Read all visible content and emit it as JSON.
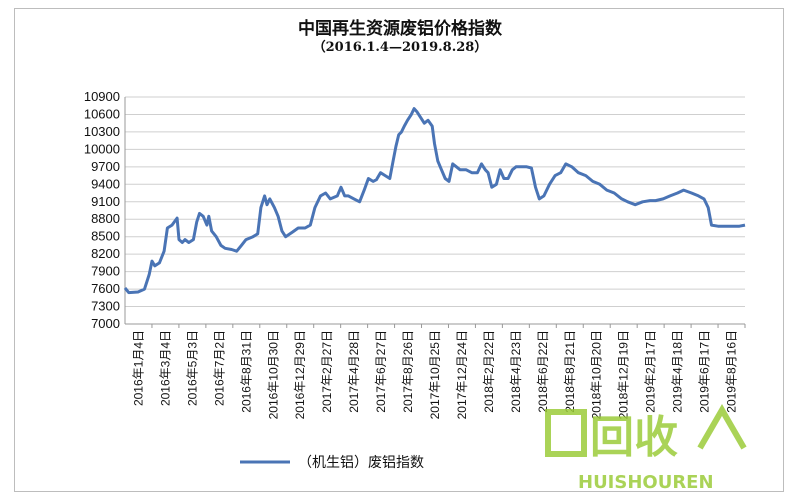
{
  "chart_data": {
    "type": "line",
    "title": "中国再生资源废铝价格指数",
    "subtitle": "（2016.1.4—2019.8.28）",
    "xlabel": "",
    "ylabel": "",
    "ylim": [
      7000,
      10900
    ],
    "yticks": [
      7000,
      7300,
      7600,
      7900,
      8200,
      8500,
      8800,
      9100,
      9400,
      9700,
      10000,
      10300,
      10600,
      10900
    ],
    "xtick_labels": [
      "2016年1月4日",
      "2016年3月4日",
      "2016年5月3日",
      "2016年7月2日",
      "2016年8月31日",
      "2016年10月30日",
      "2016年12月29日",
      "2017年2月27日",
      "2017年4月28日",
      "2017年6月27日",
      "2017年8月26日",
      "2017年10月25日",
      "2017年12月24日",
      "2018年2月22日",
      "2018年4月23日",
      "2018年6月22日",
      "2018年8月21日",
      "2018年10月20日",
      "2018年12月19日",
      "2019年2月17日",
      "2019年4月18日",
      "2019年6月17日",
      "2019年8月16日"
    ],
    "legend": {
      "position": "bottom"
    },
    "grid": true,
    "series": [
      {
        "name": "（机生铝）废铝指数",
        "color": "#4a74b5",
        "points": [
          [
            "2016-01-04",
            7620
          ],
          [
            "2016-01-12",
            7540
          ],
          [
            "2016-02-01",
            7550
          ],
          [
            "2016-02-15",
            7600
          ],
          [
            "2016-02-25",
            7850
          ],
          [
            "2016-03-02",
            8080
          ],
          [
            "2016-03-08",
            8000
          ],
          [
            "2016-03-18",
            8050
          ],
          [
            "2016-03-28",
            8250
          ],
          [
            "2016-04-04",
            8650
          ],
          [
            "2016-04-14",
            8700
          ],
          [
            "2016-04-25",
            8820
          ],
          [
            "2016-04-29",
            8450
          ],
          [
            "2016-05-06",
            8400
          ],
          [
            "2016-05-12",
            8450
          ],
          [
            "2016-05-20",
            8400
          ],
          [
            "2016-05-30",
            8450
          ],
          [
            "2016-06-06",
            8750
          ],
          [
            "2016-06-12",
            8900
          ],
          [
            "2016-06-20",
            8850
          ],
          [
            "2016-06-28",
            8700
          ],
          [
            "2016-07-02",
            8850
          ],
          [
            "2016-07-08",
            8600
          ],
          [
            "2016-07-18",
            8500
          ],
          [
            "2016-07-28",
            8350
          ],
          [
            "2016-08-06",
            8300
          ],
          [
            "2016-08-20",
            8280
          ],
          [
            "2016-08-31",
            8250
          ],
          [
            "2016-09-10",
            8350
          ],
          [
            "2016-09-20",
            8450
          ],
          [
            "2016-10-05",
            8500
          ],
          [
            "2016-10-15",
            8550
          ],
          [
            "2016-10-22",
            9000
          ],
          [
            "2016-10-30",
            9200
          ],
          [
            "2016-11-04",
            9050
          ],
          [
            "2016-11-10",
            9150
          ],
          [
            "2016-11-20",
            9000
          ],
          [
            "2016-11-28",
            8850
          ],
          [
            "2016-12-06",
            8600
          ],
          [
            "2016-12-14",
            8500
          ],
          [
            "2016-12-29",
            8580
          ],
          [
            "2017-01-10",
            8650
          ],
          [
            "2017-01-25",
            8650
          ],
          [
            "2017-02-05",
            8700
          ],
          [
            "2017-02-15",
            9000
          ],
          [
            "2017-02-27",
            9200
          ],
          [
            "2017-03-10",
            9250
          ],
          [
            "2017-03-20",
            9150
          ],
          [
            "2017-04-04",
            9200
          ],
          [
            "2017-04-12",
            9350
          ],
          [
            "2017-04-20",
            9200
          ],
          [
            "2017-04-28",
            9200
          ],
          [
            "2017-05-10",
            9150
          ],
          [
            "2017-05-22",
            9100
          ],
          [
            "2017-06-01",
            9300
          ],
          [
            "2017-06-10",
            9500
          ],
          [
            "2017-06-20",
            9450
          ],
          [
            "2017-06-27",
            9480
          ],
          [
            "2017-07-06",
            9600
          ],
          [
            "2017-07-16",
            9550
          ],
          [
            "2017-07-26",
            9500
          ],
          [
            "2017-08-02",
            9800
          ],
          [
            "2017-08-08",
            10050
          ],
          [
            "2017-08-14",
            10250
          ],
          [
            "2017-08-20",
            10300
          ],
          [
            "2017-08-26",
            10400
          ],
          [
            "2017-09-02",
            10500
          ],
          [
            "2017-09-10",
            10600
          ],
          [
            "2017-09-16",
            10700
          ],
          [
            "2017-09-22",
            10650
          ],
          [
            "2017-09-30",
            10550
          ],
          [
            "2017-10-08",
            10450
          ],
          [
            "2017-10-16",
            10500
          ],
          [
            "2017-10-25",
            10400
          ],
          [
            "2017-10-30",
            10100
          ],
          [
            "2017-11-06",
            9800
          ],
          [
            "2017-11-14",
            9650
          ],
          [
            "2017-11-22",
            9500
          ],
          [
            "2017-11-30",
            9450
          ],
          [
            "2017-12-08",
            9750
          ],
          [
            "2017-12-16",
            9700
          ],
          [
            "2017-12-24",
            9650
          ],
          [
            "2018-01-06",
            9650
          ],
          [
            "2018-01-18",
            9600
          ],
          [
            "2018-01-30",
            9600
          ],
          [
            "2018-02-08",
            9750
          ],
          [
            "2018-02-16",
            9650
          ],
          [
            "2018-02-22",
            9600
          ],
          [
            "2018-03-02",
            9350
          ],
          [
            "2018-03-12",
            9400
          ],
          [
            "2018-03-20",
            9650
          ],
          [
            "2018-03-28",
            9500
          ],
          [
            "2018-04-06",
            9500
          ],
          [
            "2018-04-15",
            9650
          ],
          [
            "2018-04-23",
            9700
          ],
          [
            "2018-05-04",
            9700
          ],
          [
            "2018-05-16",
            9700
          ],
          [
            "2018-05-26",
            9680
          ],
          [
            "2018-06-04",
            9350
          ],
          [
            "2018-06-12",
            9150
          ],
          [
            "2018-06-22",
            9200
          ],
          [
            "2018-07-04",
            9400
          ],
          [
            "2018-07-16",
            9550
          ],
          [
            "2018-07-28",
            9600
          ],
          [
            "2018-08-08",
            9750
          ],
          [
            "2018-08-21",
            9700
          ],
          [
            "2018-09-04",
            9600
          ],
          [
            "2018-09-20",
            9550
          ],
          [
            "2018-10-05",
            9450
          ],
          [
            "2018-10-20",
            9400
          ],
          [
            "2018-11-04",
            9300
          ],
          [
            "2018-11-20",
            9250
          ],
          [
            "2018-12-06",
            9150
          ],
          [
            "2018-12-19",
            9100
          ],
          [
            "2019-01-04",
            9050
          ],
          [
            "2019-01-20",
            9100
          ],
          [
            "2019-02-05",
            9120
          ],
          [
            "2019-02-17",
            9120
          ],
          [
            "2019-03-05",
            9150
          ],
          [
            "2019-03-20",
            9200
          ],
          [
            "2019-04-05",
            9250
          ],
          [
            "2019-04-18",
            9300
          ],
          [
            "2019-05-05",
            9250
          ],
          [
            "2019-05-20",
            9200
          ],
          [
            "2019-06-01",
            9150
          ],
          [
            "2019-06-10",
            9000
          ],
          [
            "2019-06-17",
            8700
          ],
          [
            "2019-07-01",
            8680
          ],
          [
            "2019-07-20",
            8680
          ],
          [
            "2019-08-05",
            8680
          ],
          [
            "2019-08-16",
            8680
          ],
          [
            "2019-08-28",
            8700
          ]
        ]
      }
    ]
  },
  "watermark": {
    "main": "回收",
    "sub": "HUISHOUREN",
    "color": "#9ccc3a"
  }
}
